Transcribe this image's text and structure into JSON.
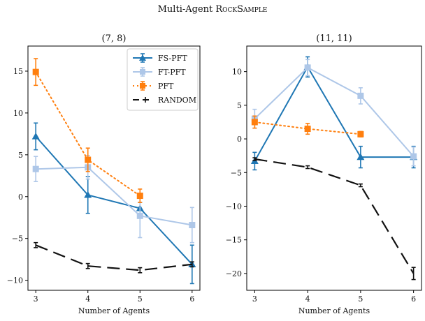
{
  "figure": {
    "title_main": "Multi-Agent ",
    "title_sc": "RockSample"
  },
  "chart_data": [
    {
      "type": "line",
      "title": "(7, 8)",
      "xlabel": "Number of Agents",
      "ylabel": "",
      "x": [
        3,
        4,
        5,
        6
      ],
      "xlim": [
        2.85,
        6.15
      ],
      "ylim": [
        -11.2,
        18.0
      ],
      "yticks": [
        -10,
        -5,
        0,
        5,
        10,
        15
      ],
      "yticklabels": [
        "−10",
        "−5",
        "0",
        "5",
        "10",
        "15"
      ],
      "legend_position": "top-right",
      "series": [
        {
          "name": "FS-PFT",
          "color": "#1f77b4",
          "marker": "triangle",
          "linestyle": "solid",
          "values": [
            7.2,
            0.2,
            -1.4,
            -8.1
          ],
          "errors": [
            1.6,
            2.2,
            0.7,
            2.3
          ]
        },
        {
          "name": "FT-PFT",
          "color": "#aec7e8",
          "marker": "square",
          "linestyle": "solid",
          "values": [
            3.3,
            3.5,
            -2.3,
            -3.4
          ],
          "errors": [
            1.5,
            1.4,
            2.6,
            2.1
          ]
        },
        {
          "name": "PFT",
          "color": "#ff7f0e",
          "marker": "square",
          "linestyle": "dotted",
          "values": [
            14.9,
            4.4,
            0.1,
            null
          ],
          "errors": [
            1.6,
            1.4,
            0.8,
            null
          ]
        },
        {
          "name": "RANDOM",
          "color": "#111111",
          "marker": "none",
          "linestyle": "dashed",
          "values": [
            -5.8,
            -8.3,
            -8.8,
            -8.1
          ],
          "errors": [
            0.3,
            0.3,
            0.3,
            0.3
          ]
        }
      ]
    },
    {
      "type": "line",
      "title": "(11, 11)",
      "xlabel": "Number of Agents",
      "ylabel": "",
      "x": [
        3,
        4,
        5,
        6
      ],
      "xlim": [
        2.85,
        6.15
      ],
      "ylim": [
        -22.5,
        13.8
      ],
      "yticks": [
        -20,
        -15,
        -10,
        -5,
        0,
        5,
        10
      ],
      "yticklabels": [
        "−20",
        "−15",
        "−10",
        "−5",
        "0",
        "5",
        "10"
      ],
      "series": [
        {
          "name": "FS-PFT",
          "color": "#1f77b4",
          "marker": "triangle",
          "linestyle": "solid",
          "values": [
            -3.3,
            10.7,
            -2.7,
            -2.7
          ],
          "errors": [
            1.3,
            1.5,
            1.6,
            1.6
          ]
        },
        {
          "name": "FT-PFT",
          "color": "#aec7e8",
          "marker": "square",
          "linestyle": "solid",
          "values": [
            3.0,
            10.6,
            6.4,
            -2.6
          ],
          "errors": [
            1.4,
            1.2,
            1.2,
            1.4
          ]
        },
        {
          "name": "PFT",
          "color": "#ff7f0e",
          "marker": "square",
          "linestyle": "dotted",
          "values": [
            2.5,
            1.5,
            0.7,
            null
          ],
          "errors": [
            0.9,
            0.8,
            0.4,
            null
          ]
        },
        {
          "name": "RANDOM",
          "color": "#111111",
          "marker": "none",
          "linestyle": "dashed",
          "values": [
            -3.0,
            -4.2,
            -6.9,
            -20.0
          ],
          "errors": [
            0.2,
            0.2,
            0.2,
            0.9
          ]
        }
      ]
    }
  ]
}
